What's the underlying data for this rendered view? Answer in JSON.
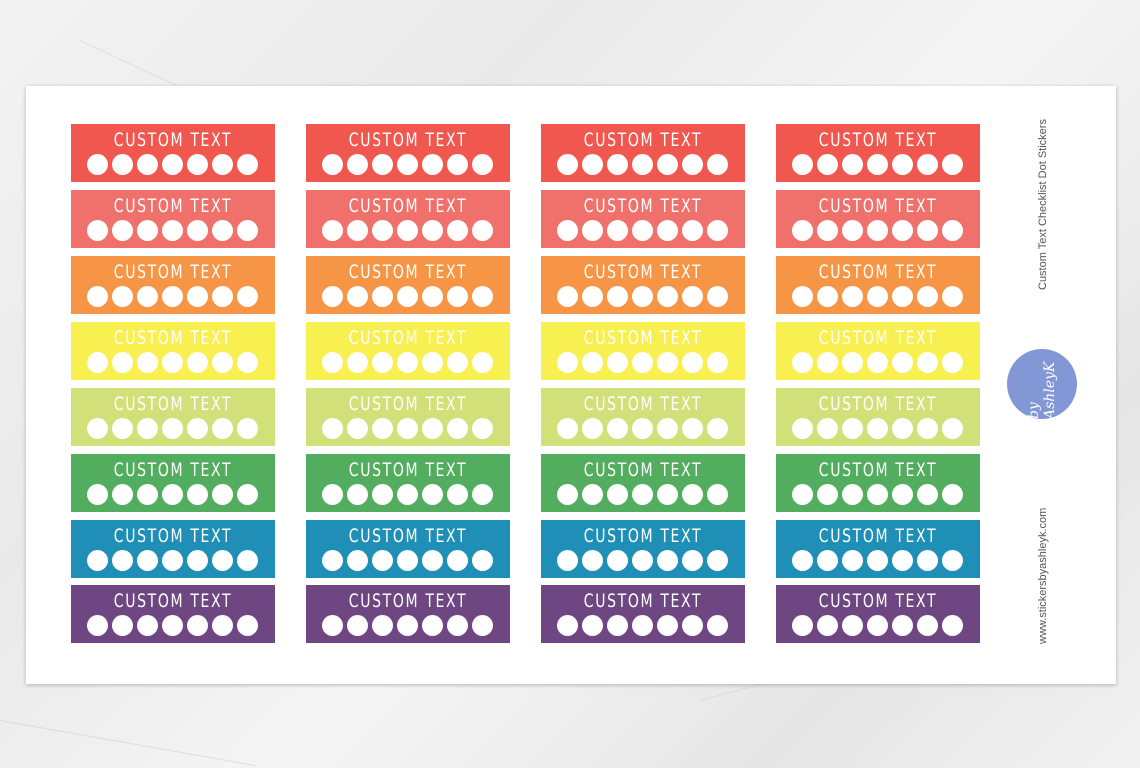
{
  "sticker_label": "CUSTOM TEXT",
  "dots_per_sticker": 7,
  "columns": 4,
  "row_colors": [
    "#f0584f",
    "#f0716b",
    "#f79546",
    "#f8f050",
    "#d2e07a",
    "#52ad5e",
    "#1f8fb8",
    "#6e4782"
  ],
  "side": {
    "title": "Custom Text Checklist Dot Stickers",
    "website": "www.stickersbyashleyk.com",
    "logo_text": "by AshleyK",
    "logo_color": "#8298d6"
  }
}
